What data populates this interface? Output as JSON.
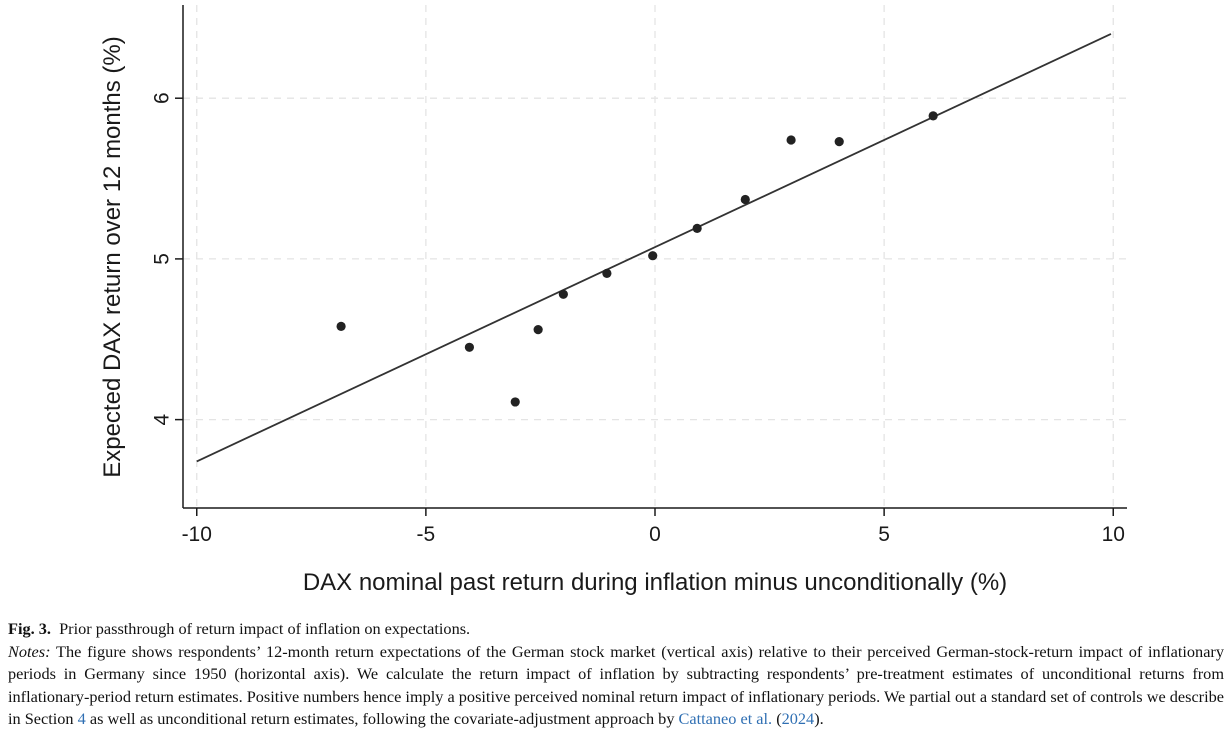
{
  "chart_data": {
    "type": "scatter",
    "title": "",
    "xlabel": "DAX nominal past return during inflation minus unconditionally (%)",
    "ylabel": "Expected DAX return over 12 months (%)",
    "xlim": [
      -10.3,
      10.3
    ],
    "ylim": [
      3.45,
      6.58
    ],
    "xticks": [
      -10,
      -5,
      0,
      5,
      10
    ],
    "yticks": [
      4,
      5,
      6
    ],
    "xtick_labels": [
      "-10",
      "-5",
      "0",
      "5",
      "10"
    ],
    "ytick_labels": [
      "4",
      "5",
      "6"
    ],
    "grid": true,
    "points": [
      {
        "x": -6.85,
        "y": 4.58
      },
      {
        "x": -4.05,
        "y": 4.45
      },
      {
        "x": -3.05,
        "y": 4.11
      },
      {
        "x": -2.55,
        "y": 4.56
      },
      {
        "x": -2.0,
        "y": 4.78
      },
      {
        "x": -1.05,
        "y": 4.91
      },
      {
        "x": -0.05,
        "y": 5.02
      },
      {
        "x": 0.92,
        "y": 5.19
      },
      {
        "x": 1.97,
        "y": 5.37
      },
      {
        "x": 2.97,
        "y": 5.74
      },
      {
        "x": 4.02,
        "y": 5.73
      },
      {
        "x": 6.07,
        "y": 5.89
      }
    ],
    "fit_line": {
      "x": [
        -10.0,
        9.95
      ],
      "y": [
        3.74,
        6.4
      ]
    }
  },
  "caption": {
    "fig_label": "Fig. 3.",
    "fig_title": "Prior passthrough of return impact of inflation on expectations.",
    "notes_label": "Notes:",
    "notes_part1": "The figure shows respondents’ 12-month return expectations of the German stock market (vertical axis) relative to their perceived German-stock-return impact of inflationary periods in Germany since 1950 (horizontal axis). We calculate the return impact of inflation by subtracting respondents’ pre-treatment estimates of unconditional returns from inflationary-period return estimates. Positive numbers hence imply a positive perceived nominal return impact of inflationary periods. We partial out a standard set of controls we describe in Section",
    "section_ref": "4",
    "notes_part2": "as well as unconditional return estimates, following the covariate-adjustment approach by",
    "citation_author": "Cattaneo et al.",
    "citation_year": "2024",
    "notes_end": ")."
  },
  "colors": {
    "points": "#222222",
    "line": "#333333",
    "grid": "#e4e4e4",
    "axis": "#1a1a1a",
    "link": "#2f6fb3"
  }
}
